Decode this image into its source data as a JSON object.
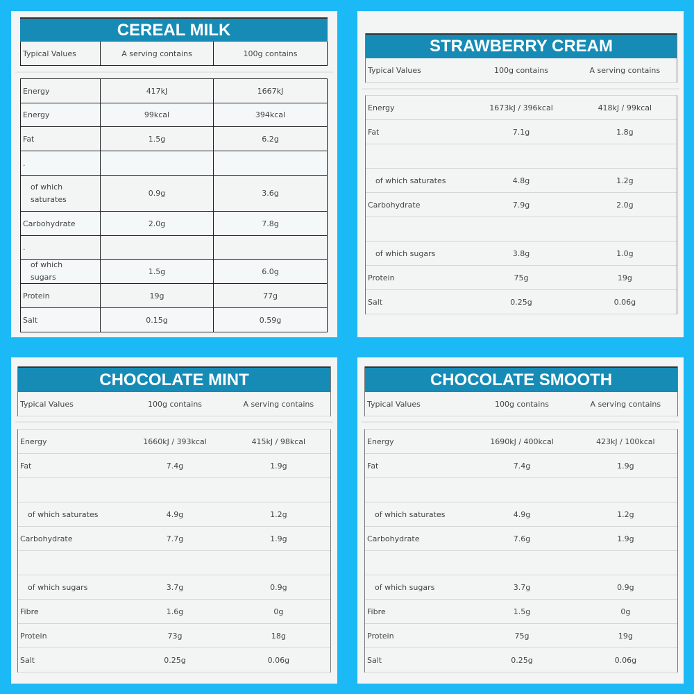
{
  "panels": [
    {
      "title": "CEREAL MILK",
      "headers": [
        "Typical Values",
        "A serving contains",
        "100g contains"
      ],
      "rows": [
        [
          "Energy",
          "417kJ",
          "1667kJ"
        ],
        [
          "Energy",
          "99kcal",
          "394kcal"
        ],
        [
          "Fat",
          "1.5g",
          "6.2g"
        ],
        [
          ".",
          "",
          ""
        ],
        [
          "of which saturates",
          "0.9g",
          "3.6g"
        ],
        [
          "Carbohydrate",
          "2.0g",
          "7.8g"
        ],
        [
          ".",
          "",
          ""
        ],
        [
          "of which sugars",
          "1.5g",
          "6.0g"
        ],
        [
          "Protein",
          "19g",
          "77g"
        ],
        [
          "Salt",
          "0.15g",
          "0.59g"
        ]
      ]
    },
    {
      "title": "STRAWBERRY CREAM",
      "headers": [
        "Typical Values",
        "100g contains",
        "A serving contains"
      ],
      "rows": [
        [
          "Energy",
          "1673kJ / 396kcal",
          "418kJ / 99kcal"
        ],
        [
          "Fat",
          "7.1g",
          "1.8g"
        ],
        [
          "",
          "",
          ""
        ],
        [
          "of which saturates",
          "4.8g",
          "1.2g"
        ],
        [
          "Carbohydrate",
          "7.9g",
          "2.0g"
        ],
        [
          "",
          "",
          ""
        ],
        [
          "of which sugars",
          "3.8g",
          "1.0g"
        ],
        [
          "Protein",
          "75g",
          "19g"
        ],
        [
          "Salt",
          "0.25g",
          "0.06g"
        ]
      ]
    },
    {
      "title": "CHOCOLATE MINT",
      "headers": [
        "Typical Values",
        "100g contains",
        "A serving contains"
      ],
      "rows": [
        [
          "Energy",
          "1660kJ / 393kcal",
          "415kJ / 98kcal"
        ],
        [
          "Fat",
          "7.4g",
          "1.9g"
        ],
        [
          "",
          "",
          ""
        ],
        [
          "of which saturates",
          "4.9g",
          "1.2g"
        ],
        [
          "Carbohydrate",
          "7.7g",
          "1.9g"
        ],
        [
          "",
          "",
          ""
        ],
        [
          "of which sugars",
          "3.7g",
          "0.9g"
        ],
        [
          "Fibre",
          "1.6g",
          "0g"
        ],
        [
          "Protein",
          "73g",
          "18g"
        ],
        [
          "Salt",
          "0.25g",
          "0.06g"
        ]
      ]
    },
    {
      "title": "CHOCOLATE SMOOTH",
      "headers": [
        "Typical Values",
        "100g contains",
        "A serving contains"
      ],
      "rows": [
        [
          "Energy",
          "1690kJ / 400kcal",
          "423kJ / 100kcal"
        ],
        [
          "Fat",
          "7.4g",
          "1.9g"
        ],
        [
          "",
          "",
          ""
        ],
        [
          "of which saturates",
          "4.9g",
          "1.2g"
        ],
        [
          "Carbohydrate",
          "7.6g",
          "1.9g"
        ],
        [
          "",
          "",
          ""
        ],
        [
          "of which sugars",
          "3.7g",
          "0.9g"
        ],
        [
          "Fibre",
          "1.5g",
          "0g"
        ],
        [
          "Protein",
          "75g",
          "19g"
        ],
        [
          "Salt",
          "0.25g",
          "0.06g"
        ]
      ]
    }
  ]
}
